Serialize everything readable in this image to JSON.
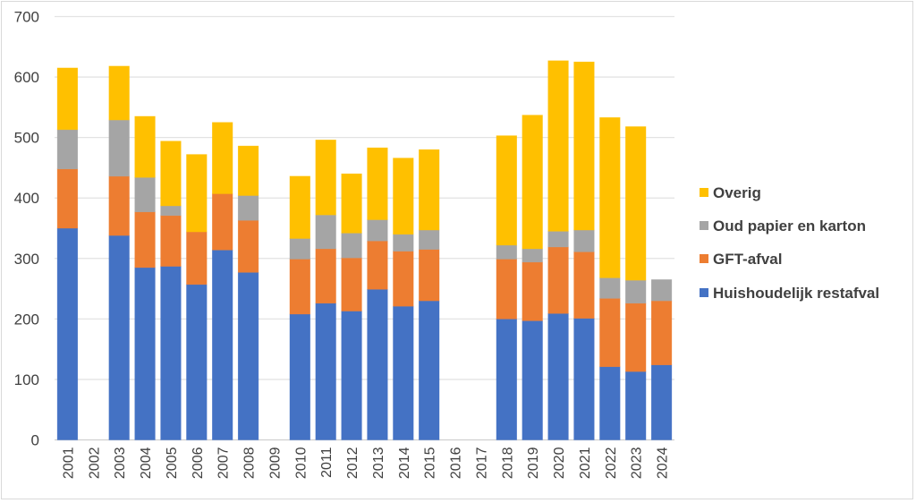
{
  "chart_data": {
    "type": "bar",
    "stacked": true,
    "title": "",
    "xlabel": "",
    "ylabel": "",
    "ylim": [
      0,
      700
    ],
    "yticks": [
      0,
      100,
      200,
      300,
      400,
      500,
      600,
      700
    ],
    "grid": true,
    "legend_position": "right",
    "categories": [
      "2001",
      "2002",
      "2003",
      "2004",
      "2005",
      "2006",
      "2007",
      "2008",
      "2009",
      "2010",
      "2011",
      "2012",
      "2013",
      "2014",
      "2015",
      "2016",
      "2017",
      "2018",
      "2019",
      "2020",
      "2021",
      "2022",
      "2023",
      "2024"
    ],
    "series": [
      {
        "name": "Huishoudelijk restafval",
        "color": "#4472C4",
        "values": [
          350,
          null,
          338,
          285,
          287,
          257,
          314,
          277,
          null,
          208,
          226,
          213,
          249,
          221,
          230,
          null,
          null,
          200,
          197,
          209,
          201,
          121,
          113,
          124
        ]
      },
      {
        "name": "GFT-afval",
        "color": "#ED7D31",
        "values": [
          98,
          null,
          98,
          92,
          84,
          87,
          93,
          86,
          null,
          91,
          90,
          88,
          80,
          91,
          85,
          null,
          null,
          99,
          97,
          110,
          110,
          113,
          113,
          106
        ]
      },
      {
        "name": "Oud papier en karton",
        "color": "#A5A5A5",
        "values": [
          65,
          null,
          93,
          57,
          16,
          0,
          0,
          41,
          null,
          34,
          56,
          41,
          35,
          28,
          32,
          null,
          null,
          23,
          22,
          26,
          36,
          34,
          38,
          35
        ]
      },
      {
        "name": "Overig",
        "color": "#FFC000",
        "values": [
          102,
          null,
          89,
          101,
          107,
          128,
          118,
          82,
          null,
          103,
          124,
          98,
          119,
          126,
          133,
          null,
          null,
          181,
          221,
          282,
          278,
          265,
          254,
          0
        ]
      }
    ],
    "legend_order": [
      "Overig",
      "Oud papier en karton",
      "GFT-afval",
      "Huishoudelijk restafval"
    ]
  }
}
